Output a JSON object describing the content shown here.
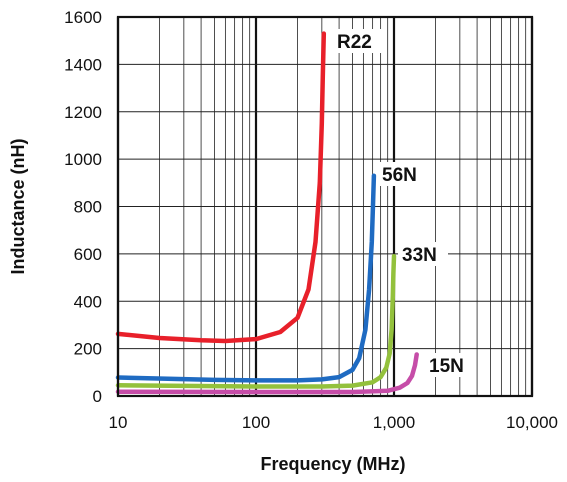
{
  "chart_data": {
    "type": "line",
    "xlabel": "Frequency (MHz)",
    "ylabel": "Inductance (nH)",
    "xscale": "log",
    "xlim": [
      10,
      10000
    ],
    "ylim": [
      0,
      1600
    ],
    "x_ticks": [
      10,
      100,
      1000,
      10000
    ],
    "x_tick_labels": [
      "10",
      "100",
      "1,000",
      "10,000"
    ],
    "y_ticks": [
      0,
      200,
      400,
      600,
      800,
      1000,
      1200,
      1400,
      1600
    ],
    "y_tick_labels": [
      "0",
      "200",
      "400",
      "600",
      "800",
      "1000",
      "1200",
      "1400",
      "1600"
    ],
    "grid": "on (major and minor log gridlines)",
    "legend": "none (series labeled directly on the plot)",
    "series": [
      {
        "name": "R22",
        "color": "#e8202a",
        "x": [
          10,
          20,
          40,
          60,
          100,
          150,
          200,
          240,
          270,
          290,
          300,
          305,
          310
        ],
        "y": [
          262,
          245,
          235,
          232,
          240,
          270,
          330,
          450,
          650,
          900,
          1150,
          1350,
          1530
        ]
      },
      {
        "name": "56N",
        "color": "#1f6bc2",
        "x": [
          10,
          50,
          100,
          200,
          300,
          400,
          500,
          560,
          620,
          660,
          690,
          705,
          715
        ],
        "y": [
          78,
          68,
          66,
          66,
          70,
          80,
          110,
          160,
          280,
          450,
          650,
          820,
          930
        ]
      },
      {
        "name": "33N",
        "color": "#93c13c",
        "x": [
          10,
          100,
          300,
          500,
          700,
          800,
          880,
          930,
          960,
          980,
          990,
          1000
        ],
        "y": [
          45,
          40,
          40,
          44,
          58,
          80,
          120,
          180,
          280,
          420,
          520,
          590
        ]
      },
      {
        "name": "15N",
        "color": "#c64da8",
        "x": [
          10,
          100,
          500,
          900,
          1100,
          1250,
          1350,
          1420,
          1460
        ],
        "y": [
          18,
          17,
          17,
          22,
          35,
          55,
          85,
          130,
          175
        ]
      }
    ]
  }
}
